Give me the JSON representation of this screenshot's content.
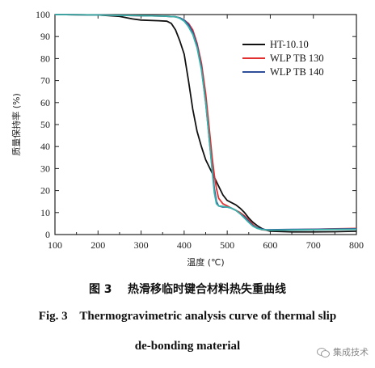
{
  "chart_data": {
    "type": "line",
    "xlabel": "温度 (℃)",
    "ylabel": "质量保持率 (%)",
    "xlim": [
      100,
      800
    ],
    "ylim": [
      0,
      100
    ],
    "xticks": [
      100,
      200,
      300,
      400,
      500,
      600,
      700,
      800
    ],
    "yticks": [
      0,
      10,
      20,
      30,
      40,
      50,
      60,
      70,
      80,
      90,
      100
    ],
    "legend_position": "top-right",
    "series": [
      {
        "name": "HT-10.10",
        "color": "#111111",
        "points": [
          [
            100,
            100
          ],
          [
            200,
            99.8
          ],
          [
            250,
            99.2
          ],
          [
            280,
            98
          ],
          [
            300,
            97.5
          ],
          [
            340,
            97.2
          ],
          [
            360,
            97
          ],
          [
            370,
            96
          ],
          [
            380,
            93
          ],
          [
            390,
            88
          ],
          [
            400,
            82
          ],
          [
            410,
            70
          ],
          [
            420,
            57
          ],
          [
            430,
            47
          ],
          [
            440,
            40
          ],
          [
            450,
            34
          ],
          [
            460,
            30
          ],
          [
            470,
            26
          ],
          [
            480,
            22
          ],
          [
            490,
            18
          ],
          [
            500,
            15.5
          ],
          [
            510,
            14.5
          ],
          [
            520,
            13.5
          ],
          [
            530,
            12
          ],
          [
            540,
            10
          ],
          [
            550,
            7.5
          ],
          [
            560,
            5.5
          ],
          [
            570,
            4
          ],
          [
            580,
            2.8
          ],
          [
            590,
            2
          ],
          [
            600,
            1.5
          ],
          [
            650,
            1.2
          ],
          [
            700,
            1.2
          ],
          [
            750,
            1.3
          ],
          [
            800,
            1.5
          ]
        ]
      },
      {
        "name": "WLP TB 130",
        "color": "#e03030",
        "points": [
          [
            100,
            100
          ],
          [
            200,
            99.8
          ],
          [
            300,
            99.5
          ],
          [
            350,
            99.3
          ],
          [
            380,
            99
          ],
          [
            390,
            98.5
          ],
          [
            400,
            97.5
          ],
          [
            410,
            96
          ],
          [
            420,
            93
          ],
          [
            430,
            87
          ],
          [
            440,
            78
          ],
          [
            450,
            64
          ],
          [
            460,
            45
          ],
          [
            465,
            35
          ],
          [
            470,
            27
          ],
          [
            475,
            21
          ],
          [
            480,
            16.5
          ],
          [
            490,
            14
          ],
          [
            500,
            13
          ],
          [
            510,
            12
          ],
          [
            520,
            11
          ],
          [
            530,
            10
          ],
          [
            540,
            8.5
          ],
          [
            550,
            6.5
          ],
          [
            560,
            4.5
          ],
          [
            570,
            3
          ],
          [
            580,
            2.2
          ],
          [
            590,
            2
          ],
          [
            600,
            2
          ],
          [
            650,
            2.2
          ],
          [
            700,
            2.4
          ],
          [
            750,
            2.6
          ],
          [
            800,
            2.8
          ]
        ]
      },
      {
        "name": "WLP TB 140",
        "color": "#2f4f9a",
        "points": [
          [
            100,
            100
          ],
          [
            200,
            99.8
          ],
          [
            300,
            99.5
          ],
          [
            350,
            99.3
          ],
          [
            380,
            99
          ],
          [
            390,
            98.5
          ],
          [
            400,
            97.5
          ],
          [
            410,
            95.5
          ],
          [
            420,
            92
          ],
          [
            430,
            86
          ],
          [
            440,
            76
          ],
          [
            450,
            60
          ],
          [
            455,
            50
          ],
          [
            460,
            40
          ],
          [
            465,
            30
          ],
          [
            470,
            21
          ],
          [
            475,
            15
          ],
          [
            480,
            13
          ],
          [
            490,
            12.5
          ],
          [
            500,
            12.5
          ],
          [
            510,
            12
          ],
          [
            520,
            11
          ],
          [
            530,
            9.5
          ],
          [
            540,
            8
          ],
          [
            550,
            6
          ],
          [
            560,
            4
          ],
          [
            570,
            3
          ],
          [
            580,
            2.5
          ],
          [
            590,
            2.2
          ],
          [
            600,
            2.2
          ],
          [
            650,
            2.3
          ],
          [
            700,
            2.4
          ],
          [
            750,
            2.5
          ],
          [
            800,
            2.6
          ]
        ]
      },
      {
        "name": "",
        "color": "#3ab0a8",
        "points": [
          [
            100,
            100
          ],
          [
            200,
            99.8
          ],
          [
            300,
            99.5
          ],
          [
            350,
            99.3
          ],
          [
            380,
            99
          ],
          [
            390,
            98.3
          ],
          [
            400,
            97
          ],
          [
            410,
            94.5
          ],
          [
            420,
            91
          ],
          [
            430,
            85
          ],
          [
            440,
            75
          ],
          [
            450,
            60
          ],
          [
            455,
            50
          ],
          [
            460,
            40
          ],
          [
            465,
            29
          ],
          [
            470,
            19
          ],
          [
            475,
            14
          ],
          [
            480,
            13
          ],
          [
            490,
            12.8
          ],
          [
            500,
            12.5
          ],
          [
            510,
            12
          ],
          [
            520,
            11
          ],
          [
            530,
            9.5
          ],
          [
            540,
            7.5
          ],
          [
            550,
            5.5
          ],
          [
            560,
            3.8
          ],
          [
            570,
            2.8
          ],
          [
            580,
            2.3
          ],
          [
            590,
            2.1
          ],
          [
            600,
            2
          ],
          [
            650,
            2.1
          ],
          [
            700,
            2.2
          ],
          [
            750,
            2.3
          ],
          [
            800,
            2.4
          ]
        ]
      }
    ]
  },
  "caption": {
    "cn": "图 3    热滑移临时键合材料热失重曲线",
    "en_line1": "Fig. 3    Thermogravimetric analysis curve of thermal slip",
    "en_line2": "de-bonding material"
  },
  "watermark": {
    "text": "集成技术",
    "icon": "wechat-icon"
  }
}
